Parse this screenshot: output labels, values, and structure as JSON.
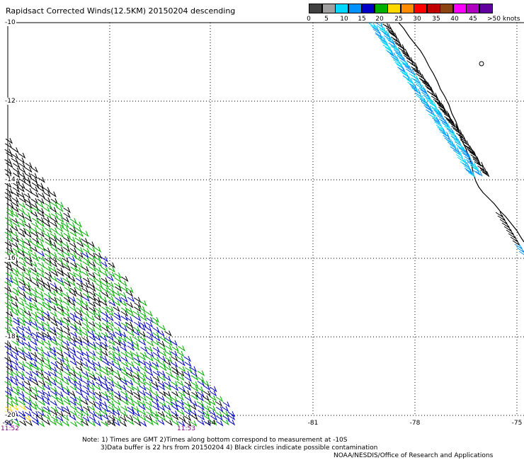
{
  "title": "Rapidsact Corrected Winds(12.5KM) 20150204 descending",
  "colorbar": {
    "colors": [
      "#404040",
      "#a0a0a0",
      "#00d8ff",
      "#0090ff",
      "#0000c8",
      "#00b000",
      "#ffd800",
      "#ff8c00",
      "#ff0000",
      "#c00000",
      "#8b4513",
      "#ff00ff",
      "#b000c0",
      "#6000a0"
    ],
    "labels": [
      "0",
      "5",
      "10",
      "15",
      "20",
      "25",
      "30",
      "35",
      "40",
      "45"
    ],
    "units_label": ">50 knots"
  },
  "axes": {
    "lat_ticks": [
      "-10",
      "-12",
      "-14",
      "-16",
      "-18",
      "-20"
    ],
    "lon_ticks": [
      "-90",
      "-87",
      "-84",
      "-81",
      "-78",
      "-75"
    ]
  },
  "times": {
    "left": "11:52",
    "mid": "11:53"
  },
  "notes": {
    "line1": "Note: 1) Times are GMT 2)Times along bottom correspond to measurement at -10S",
    "line2": "3)Data buffer is 22 hrs from 20150204 4) Black circles indicate possible contamination",
    "credit": "NOAA/NESDIS/Office of Research and Applications"
  }
}
